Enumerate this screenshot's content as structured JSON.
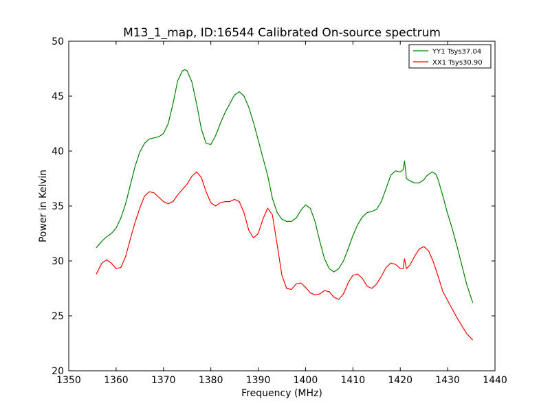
{
  "chart_data": {
    "type": "line",
    "title": "M13_1_map, ID:16544 Calibrated On-source spectrum",
    "xlabel": "Frequency (MHz)",
    "ylabel": "Power in Kelvin",
    "xlim": [
      1350,
      1440
    ],
    "ylim": [
      20,
      50
    ],
    "xticks": [
      1350,
      1360,
      1370,
      1380,
      1390,
      1400,
      1410,
      1420,
      1430,
      1440
    ],
    "yticks": [
      20,
      25,
      30,
      35,
      40,
      45,
      50
    ],
    "grid": false,
    "legend_position": "top-right",
    "series": [
      {
        "name": "YY1 Tsys37.04",
        "color": "#008000",
        "points": [
          [
            1355.8,
            31.2
          ],
          [
            1357.0,
            31.8
          ],
          [
            1358.0,
            32.2
          ],
          [
            1359.0,
            32.5
          ],
          [
            1360.0,
            33.0
          ],
          [
            1361.0,
            33.9
          ],
          [
            1362.0,
            35.2
          ],
          [
            1363.0,
            36.9
          ],
          [
            1364.0,
            38.6
          ],
          [
            1365.0,
            39.9
          ],
          [
            1366.0,
            40.7
          ],
          [
            1367.0,
            41.1
          ],
          [
            1368.0,
            41.2
          ],
          [
            1369.0,
            41.3
          ],
          [
            1370.0,
            41.6
          ],
          [
            1371.0,
            42.5
          ],
          [
            1372.0,
            44.3
          ],
          [
            1373.0,
            46.4
          ],
          [
            1374.0,
            47.3
          ],
          [
            1374.5,
            47.4
          ],
          [
            1375.0,
            47.3
          ],
          [
            1376.0,
            46.3
          ],
          [
            1377.0,
            44.3
          ],
          [
            1378.0,
            42.0
          ],
          [
            1379.0,
            40.7
          ],
          [
            1380.0,
            40.6
          ],
          [
            1381.0,
            41.4
          ],
          [
            1382.0,
            42.5
          ],
          [
            1383.0,
            43.5
          ],
          [
            1384.0,
            44.3
          ],
          [
            1385.0,
            45.1
          ],
          [
            1386.0,
            45.4
          ],
          [
            1387.0,
            45.0
          ],
          [
            1388.0,
            44.0
          ],
          [
            1389.0,
            42.6
          ],
          [
            1390.0,
            41.0
          ],
          [
            1391.0,
            39.4
          ],
          [
            1392.0,
            37.8
          ],
          [
            1393.0,
            35.7
          ],
          [
            1394.0,
            34.4
          ],
          [
            1395.0,
            33.8
          ],
          [
            1396.0,
            33.6
          ],
          [
            1397.0,
            33.6
          ],
          [
            1398.0,
            33.9
          ],
          [
            1399.0,
            34.6
          ],
          [
            1400.0,
            35.1
          ],
          [
            1401.0,
            34.8
          ],
          [
            1402.0,
            33.6
          ],
          [
            1403.0,
            31.8
          ],
          [
            1404.0,
            30.2
          ],
          [
            1405.0,
            29.3
          ],
          [
            1406.0,
            29.0
          ],
          [
            1407.0,
            29.3
          ],
          [
            1408.0,
            30.0
          ],
          [
            1409.0,
            31.1
          ],
          [
            1410.0,
            32.3
          ],
          [
            1411.0,
            33.3
          ],
          [
            1412.0,
            34.0
          ],
          [
            1413.0,
            34.4
          ],
          [
            1414.0,
            34.5
          ],
          [
            1415.0,
            34.7
          ],
          [
            1416.0,
            35.4
          ],
          [
            1417.0,
            36.6
          ],
          [
            1418.0,
            37.8
          ],
          [
            1419.0,
            38.2
          ],
          [
            1420.0,
            38.1
          ],
          [
            1420.6,
            38.3
          ],
          [
            1420.9,
            39.1
          ],
          [
            1421.3,
            37.5
          ],
          [
            1422.0,
            37.3
          ],
          [
            1423.0,
            37.1
          ],
          [
            1424.0,
            37.1
          ],
          [
            1425.0,
            37.4
          ],
          [
            1425.5,
            37.7
          ],
          [
            1426.0,
            37.9
          ],
          [
            1426.8,
            38.1
          ],
          [
            1427.5,
            37.9
          ],
          [
            1428.0,
            37.4
          ],
          [
            1429.0,
            35.9
          ],
          [
            1430.0,
            34.3
          ],
          [
            1431.0,
            32.9
          ],
          [
            1432.0,
            31.3
          ],
          [
            1433.0,
            29.6
          ],
          [
            1434.0,
            27.9
          ],
          [
            1435.3,
            26.2
          ]
        ]
      },
      {
        "name": "XX1 Tsys30.90",
        "color": "#ff0000",
        "points": [
          [
            1355.8,
            28.8
          ],
          [
            1357.0,
            29.8
          ],
          [
            1358.0,
            30.1
          ],
          [
            1359.0,
            29.8
          ],
          [
            1360.0,
            29.3
          ],
          [
            1361.0,
            29.4
          ],
          [
            1362.0,
            30.4
          ],
          [
            1363.0,
            32.0
          ],
          [
            1364.0,
            33.5
          ],
          [
            1365.0,
            34.8
          ],
          [
            1366.0,
            35.9
          ],
          [
            1367.0,
            36.3
          ],
          [
            1368.0,
            36.2
          ],
          [
            1369.0,
            35.8
          ],
          [
            1370.0,
            35.4
          ],
          [
            1371.0,
            35.2
          ],
          [
            1372.0,
            35.4
          ],
          [
            1373.0,
            36.0
          ],
          [
            1374.0,
            36.5
          ],
          [
            1375.0,
            37.0
          ],
          [
            1376.0,
            37.7
          ],
          [
            1377.0,
            38.1
          ],
          [
            1378.0,
            37.6
          ],
          [
            1379.0,
            36.3
          ],
          [
            1380.0,
            35.3
          ],
          [
            1381.0,
            35.0
          ],
          [
            1382.0,
            35.3
          ],
          [
            1383.0,
            35.4
          ],
          [
            1384.0,
            35.4
          ],
          [
            1385.0,
            35.6
          ],
          [
            1386.0,
            35.4
          ],
          [
            1387.0,
            34.4
          ],
          [
            1388.0,
            32.8
          ],
          [
            1389.0,
            32.1
          ],
          [
            1390.0,
            32.5
          ],
          [
            1391.0,
            33.8
          ],
          [
            1392.0,
            34.8
          ],
          [
            1393.0,
            34.2
          ],
          [
            1394.0,
            31.5
          ],
          [
            1395.0,
            28.7
          ],
          [
            1396.0,
            27.5
          ],
          [
            1397.0,
            27.4
          ],
          [
            1398.0,
            27.9
          ],
          [
            1399.0,
            28.0
          ],
          [
            1400.0,
            27.6
          ],
          [
            1401.0,
            27.1
          ],
          [
            1402.0,
            26.9
          ],
          [
            1403.0,
            27.0
          ],
          [
            1404.0,
            27.3
          ],
          [
            1405.0,
            27.2
          ],
          [
            1406.0,
            26.7
          ],
          [
            1407.0,
            26.5
          ],
          [
            1408.0,
            27.0
          ],
          [
            1409.0,
            28.0
          ],
          [
            1410.0,
            28.7
          ],
          [
            1411.0,
            28.8
          ],
          [
            1412.0,
            28.4
          ],
          [
            1413.0,
            27.7
          ],
          [
            1414.0,
            27.5
          ],
          [
            1415.0,
            27.9
          ],
          [
            1416.0,
            28.6
          ],
          [
            1417.0,
            29.4
          ],
          [
            1418.0,
            29.8
          ],
          [
            1419.0,
            29.7
          ],
          [
            1420.0,
            29.3
          ],
          [
            1420.6,
            29.3
          ],
          [
            1420.9,
            30.2
          ],
          [
            1421.3,
            29.3
          ],
          [
            1422.0,
            29.6
          ],
          [
            1423.0,
            30.4
          ],
          [
            1424.0,
            31.1
          ],
          [
            1425.0,
            31.3
          ],
          [
            1426.0,
            30.9
          ],
          [
            1427.0,
            29.9
          ],
          [
            1428.0,
            28.6
          ],
          [
            1429.0,
            27.2
          ],
          [
            1430.0,
            26.4
          ],
          [
            1431.0,
            25.6
          ],
          [
            1432.0,
            24.8
          ],
          [
            1433.0,
            24.1
          ],
          [
            1434.0,
            23.4
          ],
          [
            1435.3,
            22.8
          ]
        ]
      }
    ]
  }
}
